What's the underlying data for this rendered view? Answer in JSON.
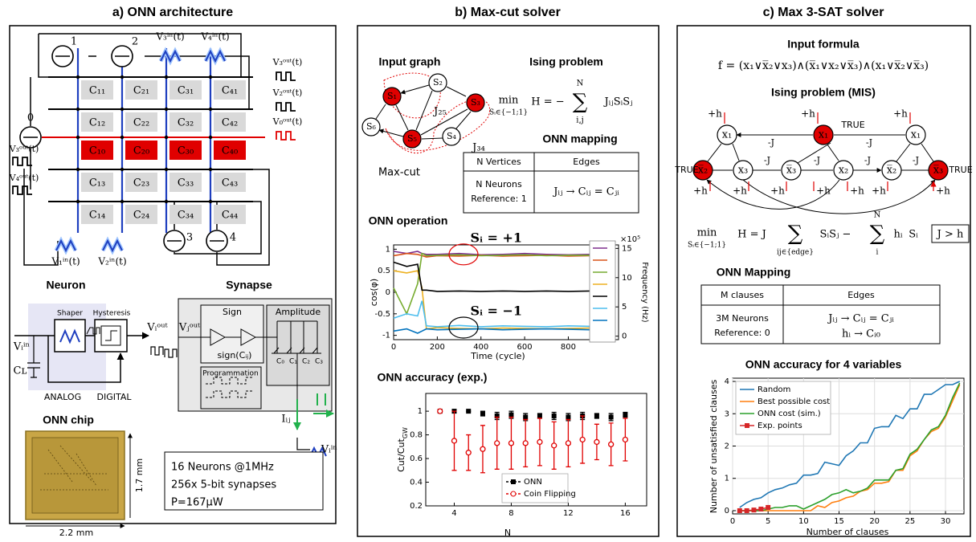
{
  "a": {
    "title": "a) ONN architecture",
    "neurons": [
      "1",
      "2",
      "0",
      "3",
      "4"
    ],
    "cells": [
      [
        "C₁₁",
        "C₂₁",
        "C₃₁",
        "C₄₁"
      ],
      [
        "C₁₂",
        "C₂₂",
        "C₃₂",
        "C₄₂"
      ],
      [
        "C₁₀",
        "C₂₀",
        "C₃₀",
        "C₄₀"
      ],
      [
        "C₁₃",
        "C₂₃",
        "C₃₃",
        "C₄₃"
      ],
      [
        "C₁₄",
        "C₂₄",
        "C₃₄",
        "C₄₄"
      ]
    ],
    "inputs": [
      "V₃ⁱⁿ(t)",
      "V₄ⁱⁿ(t)",
      "V₁ⁱⁿ(t)",
      "V₂ⁱⁿ(t)"
    ],
    "outputs": [
      "V₃ᵒᵘᵗ(t)",
      "V₂ᵒᵘᵗ(t)",
      "V₀ᵒᵘᵗ(t)",
      "V₃ᵒᵘᵗ(t)",
      "V₄ᵒᵘᵗ(t)"
    ],
    "neuron_label": "Neuron",
    "synapse_label": "Synapse",
    "neuron_circuit": {
      "input": "Vᵢⁱⁿ",
      "capacitor": "Cʟ",
      "shaper": "Shaper",
      "hysteresis": "Hysteresis",
      "output": "Vᵢᵒᵘᵗ",
      "analog": "ANALOG",
      "digital": "DIGITAL"
    },
    "synapse_circuit": {
      "input": "Vⱼᵒᵘᵗ",
      "sign": "Sign",
      "sign_fn": "sign(Cᵢⱼ)",
      "amplitude": "Amplitude",
      "caps": [
        "C₀",
        "C₁",
        "C₂",
        "C₃"
      ],
      "programmation": "Programmation",
      "current": "Iᵢⱼ",
      "output": "Vᵢⁱⁿ"
    },
    "chip": {
      "title": "ONN chip",
      "height": "1.7 mm",
      "width": "2.2 mm",
      "specs": [
        "16 Neurons @1MHz",
        "256x 5-bit synapses",
        "P=167μW"
      ]
    }
  },
  "b": {
    "title": "b) Max-cut solver",
    "input_graph": "Input graph",
    "ising_title": "Ising problem",
    "ising": {
      "min": "min",
      "constraint": "Sᵢ∈{−1;1}",
      "lhs": "H = −",
      "sum": "∑",
      "upper": "N",
      "lower": "i,j",
      "term": "JᵢⱼSᵢSⱼ"
    },
    "nodes": [
      "S₁",
      "S₂",
      "S₃",
      "S₄",
      "S₅",
      "S₆"
    ],
    "couplings": [
      "J₂₅",
      "J₃₄"
    ],
    "maxcut": "Max-cut",
    "mapping_title": "ONN mapping",
    "table": {
      "header": [
        "N Vertices",
        "Edges"
      ],
      "row": [
        [
          "N Neurons",
          "Reference: 1"
        ],
        "Jᵢⱼ → Cᵢⱼ = Cⱼᵢ"
      ]
    }
  },
  "c": {
    "title": "c) Max 3-SAT solver",
    "formula_title": "Input formula",
    "formula": "f = (x₁∨x̅₂∨x₃)∧(x̅₁∨x₂∨x̅₃)∧(x₁∨x̅₂∨x̅₃)",
    "ising_title": "Ising problem (MIS)",
    "nodes": [
      "x₁",
      "x₁",
      "x₁",
      "x̅₂",
      "x₃",
      "x̅₃",
      "x₂",
      "x̅₂",
      "x̅₃"
    ],
    "true_label": [
      "TRUE",
      "TRUE",
      "TRUE"
    ],
    "coupling_labels": [
      "-J",
      "-J",
      "-J",
      "-J",
      "-J",
      "-J"
    ],
    "field_labels": [
      "+h",
      "+h",
      "+h",
      "+h",
      "+h",
      "+h",
      "+h",
      "+h",
      "+h",
      "+h"
    ],
    "ising": {
      "min": "min",
      "constraint": "Sᵢ∈{−1;1}",
      "lhs": "H = J",
      "sum1": "∑",
      "lower1": "ij∈{edge}",
      "term1": "SᵢSⱼ −",
      "sum2": "∑",
      "upper2": "N",
      "lower2": "i",
      "field": "hᵢ",
      "term2": "Sᵢ",
      "condition": "J > h"
    },
    "mapping_title": "ONN Mapping",
    "table": {
      "header": [
        "M clauses",
        "Edges"
      ],
      "row": [
        [
          "3M Neurons",
          "Reference: 0"
        ],
        [
          "Jᵢⱼ → Cᵢⱼ = Cⱼᵢ",
          "hᵢ → Cᵢ₀"
        ]
      ]
    }
  },
  "chart_data": [
    {
      "type": "line",
      "title": "ONN operation",
      "xlabel": "Time (cycle)",
      "ylabel": "cos(φ)",
      "y2label": "Frequency (Hz)",
      "y2_scale": "×10⁵",
      "x": [
        0,
        60,
        110,
        130,
        150,
        200,
        300,
        400,
        500,
        600,
        700,
        800,
        900
      ],
      "series": [
        {
          "color": "#7e2f8e",
          "values": [
            0.95,
            0.9,
            0.95,
            0.9,
            0.88,
            0.88,
            0.9,
            0.87,
            0.88,
            0.9,
            0.88,
            0.87,
            0.88
          ]
        },
        {
          "color": "#d95319",
          "values": [
            0.85,
            0.9,
            0.88,
            0.85,
            0.82,
            0.85,
            0.84,
            0.86,
            0.84,
            0.85,
            0.86,
            0.84,
            0.85
          ]
        },
        {
          "color": "#77ac30",
          "values": [
            0.1,
            -0.5,
            0.2,
            0.9,
            0.85,
            0.86,
            0.87,
            0.85,
            0.86,
            0.87,
            0.85,
            0.86,
            0.86
          ]
        },
        {
          "color": "#edb120",
          "values": [
            0.5,
            0.45,
            0.5,
            0.1,
            -0.85,
            -0.82,
            -0.84,
            -0.85,
            -0.83,
            -0.84,
            -0.85,
            -0.84,
            -0.83
          ]
        },
        {
          "color": "#000000",
          "values": [
            0.7,
            0.6,
            0.65,
            0.05,
            0.05,
            0.02,
            0.03,
            0.02,
            0.03,
            0.02,
            0.03,
            0.02,
            0.03
          ]
        },
        {
          "color": "#4dbeee",
          "values": [
            -0.6,
            -0.5,
            -0.55,
            -0.2,
            -0.78,
            -0.8,
            -0.77,
            -0.8,
            -0.78,
            -0.79,
            -0.8,
            -0.78,
            -0.79
          ]
        },
        {
          "color": "#0072bd",
          "values": [
            -0.9,
            -0.85,
            -0.95,
            -0.9,
            -0.85,
            -0.87,
            -0.86,
            -0.85,
            -0.87,
            -0.86,
            -0.85,
            -0.86,
            -0.87
          ]
        }
      ],
      "xlim": [
        0,
        1030
      ],
      "ylim": [
        -1.1,
        1.1
      ],
      "xticks": [
        0,
        200,
        400,
        600,
        800
      ],
      "yticks": [
        -1,
        -0.5,
        0,
        0.5,
        1
      ],
      "y2lim": [
        -0.6,
        15.6
      ],
      "y2ticks": [
        0,
        5,
        10,
        15
      ],
      "annotations": [
        {
          "text": "Sᵢ = +1",
          "color": "#e00000"
        },
        {
          "text": "Sᵢ = −1",
          "color": "#000000"
        }
      ]
    },
    {
      "type": "errorbar",
      "title": "ONN accuracy (exp.)",
      "xlabel": "N",
      "ylabel": "Cut/Cut",
      "ylabel_sub": "GW",
      "x": [
        3,
        4,
        5,
        6,
        7,
        8,
        9,
        10,
        11,
        12,
        13,
        14,
        15,
        16
      ],
      "series": [
        {
          "name": "ONN",
          "color": "#000000",
          "marker": "square",
          "values": [
            1,
            1,
            1,
            0.98,
            0.96,
            0.97,
            0.95,
            0.96,
            0.96,
            0.95,
            0.96,
            0.96,
            0.95,
            0.97
          ],
          "errors": [
            0,
            0,
            0,
            0.02,
            0.03,
            0.03,
            0.03,
            0.02,
            0.03,
            0.03,
            0.03,
            0.02,
            0.03,
            0.02
          ]
        },
        {
          "name": "Coin Flipping",
          "color": "#e00000",
          "marker": "circle",
          "values": [
            1,
            0.75,
            0.65,
            0.68,
            0.73,
            0.73,
            0.73,
            0.74,
            0.71,
            0.73,
            0.76,
            0.74,
            0.72,
            0.76
          ],
          "errors": [
            0,
            0.25,
            0.15,
            0.2,
            0.22,
            0.22,
            0.2,
            0.2,
            0.2,
            0.2,
            0.2,
            0.15,
            0.18,
            0.18
          ]
        }
      ],
      "xlim": [
        2,
        17.5
      ],
      "ylim": [
        0.2,
        1.15
      ],
      "xticks": [
        4,
        8,
        12,
        16
      ],
      "yticks": [
        0.2,
        0.4,
        0.6,
        0.8,
        1
      ],
      "legend": "lower center"
    },
    {
      "type": "line",
      "title": "ONN accuracy for 4 variables",
      "xlabel": "Number of clauses",
      "ylabel": "Number of unsatisfied clauses",
      "x": [
        1,
        2,
        3,
        4,
        5,
        6,
        7,
        8,
        9,
        10,
        11,
        12,
        13,
        14,
        15,
        16,
        17,
        18,
        19,
        20,
        21,
        22,
        23,
        24,
        25,
        26,
        27,
        28,
        29,
        30,
        31,
        32
      ],
      "series": [
        {
          "name": "Random",
          "color": "#1f77b4",
          "values": [
            0.1,
            0.25,
            0.35,
            0.4,
            0.55,
            0.65,
            0.7,
            0.8,
            0.85,
            1.1,
            1.1,
            1.15,
            1.5,
            1.45,
            1.4,
            1.7,
            1.85,
            2.1,
            2.1,
            2.55,
            2.6,
            2.6,
            2.95,
            2.85,
            3.15,
            3.15,
            3.6,
            3.6,
            3.75,
            3.9,
            3.9,
            4.0
          ]
        },
        {
          "name": "Best possible cost",
          "color": "#ff7f0e",
          "values": [
            0,
            0,
            0,
            0,
            0,
            0,
            0,
            0,
            0,
            0,
            0,
            0.15,
            0.1,
            0.25,
            0.3,
            0.4,
            0.45,
            0.6,
            0.65,
            0.85,
            0.85,
            0.9,
            1.25,
            1.25,
            1.7,
            1.85,
            2.2,
            2.45,
            2.55,
            2.9,
            3.4,
            3.9
          ]
        },
        {
          "name": "ONN cost (sim.)",
          "color": "#2ca02c",
          "values": [
            0,
            0,
            0,
            0,
            0.05,
            0.1,
            0.1,
            0.15,
            0.15,
            0.05,
            0.15,
            0.25,
            0.35,
            0.5,
            0.55,
            0.65,
            0.55,
            0.6,
            0.7,
            0.95,
            0.95,
            0.95,
            1.25,
            1.3,
            1.75,
            1.9,
            2.2,
            2.5,
            2.6,
            2.95,
            3.5,
            3.95
          ]
        },
        {
          "name": "Exp. points",
          "color": "#d62728",
          "marker": "square",
          "values": [
            0,
            0,
            0.02,
            0.05,
            0.1,
            null,
            null,
            null,
            null,
            null,
            null,
            null,
            null,
            null,
            null,
            null,
            null,
            null,
            null,
            null,
            null,
            null,
            null,
            null,
            null,
            null,
            null,
            null,
            null,
            null,
            null,
            null
          ]
        }
      ],
      "xlim": [
        0,
        32.6
      ],
      "ylim": [
        -0.1,
        4.1
      ],
      "xticks": [
        0,
        5,
        10,
        15,
        20,
        25,
        30
      ],
      "yticks": [
        0,
        1,
        2,
        3,
        4
      ],
      "grid": true,
      "legend": "upper left"
    }
  ]
}
